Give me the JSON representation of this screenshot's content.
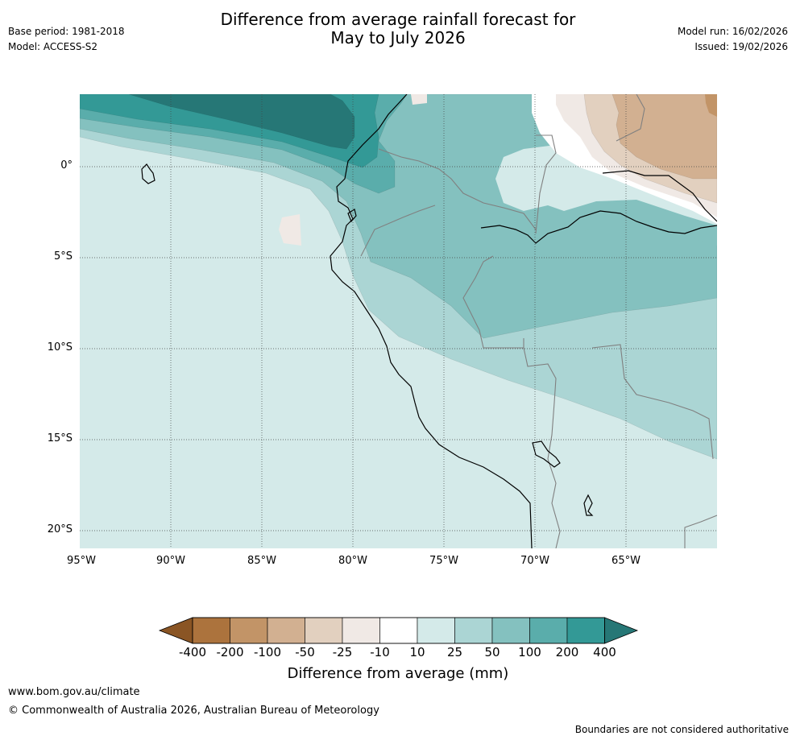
{
  "header": {
    "title_line1": "Difference from average rainfall forecast for",
    "title_line2": "May to July 2026",
    "base_period": "Base period: 1981-2018",
    "model": "Model: ACCESS-S2",
    "model_run": "Model run: 16/02/2026",
    "issued": "Issued: 19/02/2026"
  },
  "map": {
    "lat_labels": [
      "0°",
      "5°S",
      "10°S",
      "15°S",
      "20°S"
    ],
    "lon_labels": [
      "95°W",
      "90°W",
      "85°W",
      "80°W",
      "75°W",
      "70°W",
      "65°W"
    ],
    "colors": {
      "c_n400": "#8a5524",
      "c_n200": "#ac733d",
      "c_n100": "#c29467",
      "c_n50": "#d2b091",
      "c_n25": "#e2d0bf",
      "c_n10": "#f0e9e5",
      "c_neutral": "#ffffff",
      "c_10": "#d4eae9",
      "c_25": "#abd5d4",
      "c_50": "#84c1bf",
      "c_100": "#5aadab",
      "c_200": "#339996",
      "c_400": "#267776",
      "coast": "#000000",
      "border": "#808080",
      "grid": "#444444"
    }
  },
  "colorbar": {
    "ticks": [
      "-400",
      "-200",
      "-100",
      "-50",
      "-25",
      "-10",
      "10",
      "25",
      "50",
      "100",
      "200",
      "400"
    ],
    "title": "Difference from average (mm)"
  },
  "footer": {
    "url": "www.bom.gov.au/climate",
    "copyright": "© Commonwealth of Australia 2026, Australian Bureau of Meteorology",
    "disclaimer": "Boundaries are not considered authoritative"
  }
}
